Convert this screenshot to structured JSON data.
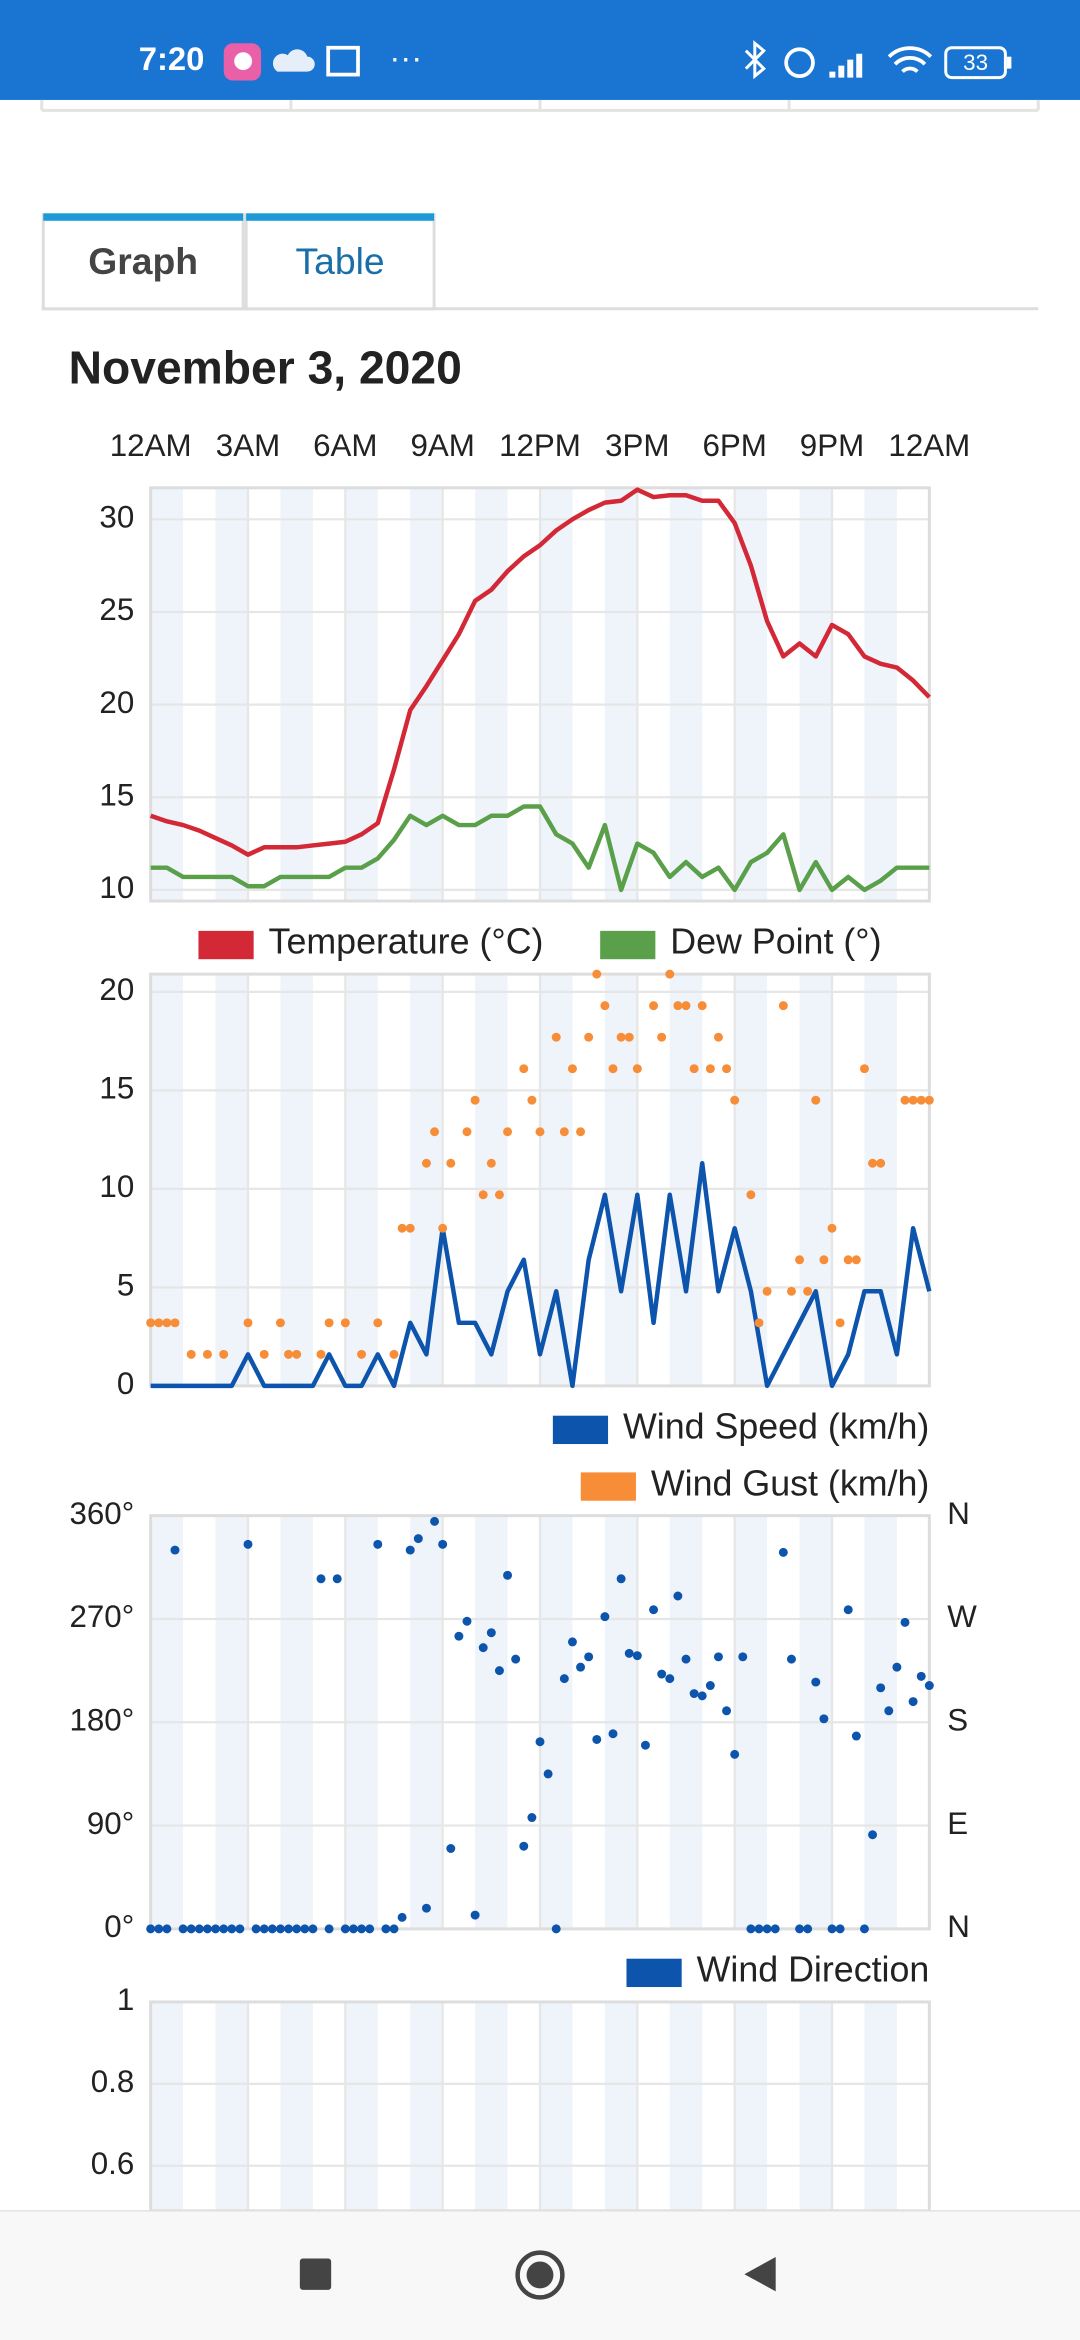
{
  "status_bar": {
    "time": "7:20",
    "battery": "33"
  },
  "tabs": [
    {
      "label": "Graph"
    },
    {
      "label": "Table"
    }
  ],
  "heading": "November 3, 2020",
  "chart_data": [
    {
      "type": "line",
      "xlim": [
        0,
        24
      ],
      "xticks": [
        {
          "value": 0,
          "label": "12AM"
        },
        {
          "value": 3,
          "label": "3AM"
        },
        {
          "value": 6,
          "label": "6AM"
        },
        {
          "value": 9,
          "label": "9AM"
        },
        {
          "value": 12,
          "label": "12PM"
        },
        {
          "value": 15,
          "label": "3PM"
        },
        {
          "value": 18,
          "label": "6PM"
        },
        {
          "value": 21,
          "label": "9PM"
        },
        {
          "value": 24,
          "label": "12AM"
        }
      ],
      "ylim": [
        9.4,
        31.7
      ],
      "yticks": [
        10,
        15,
        20,
        25,
        30
      ],
      "grid": true,
      "legend": "bottom",
      "x": [
        0,
        0.5,
        1,
        1.5,
        2,
        2.5,
        3,
        3.5,
        4,
        4.5,
        5,
        5.5,
        6,
        6.5,
        7,
        7.5,
        8,
        8.5,
        9,
        9.5,
        10,
        10.5,
        11,
        11.5,
        12,
        12.5,
        13,
        13.5,
        14,
        14.5,
        15,
        15.5,
        16,
        16.5,
        17,
        17.5,
        18,
        18.5,
        19,
        19.5,
        20,
        20.5,
        21,
        21.5,
        22,
        22.5,
        23,
        23.5,
        24
      ],
      "series": [
        {
          "name": "Temperature (°C)",
          "color": "#d32836",
          "values": [
            14.0,
            13.7,
            13.5,
            13.2,
            12.8,
            12.4,
            11.9,
            12.3,
            12.3,
            12.3,
            12.4,
            12.5,
            12.6,
            13.0,
            13.6,
            16.5,
            19.7,
            21.0,
            22.4,
            23.8,
            25.6,
            26.2,
            27.2,
            28.0,
            28.6,
            29.4,
            30.0,
            30.5,
            30.9,
            31.0,
            31.6,
            31.2,
            31.3,
            31.3,
            31.0,
            31.0,
            29.8,
            27.5,
            24.5,
            22.6,
            23.3,
            22.6,
            24.3,
            23.8,
            22.6,
            22.2,
            22.0,
            21.3,
            20.4
          ]
        },
        {
          "name": "Dew Point (°)",
          "color": "#5aa04a",
          "values": [
            11.2,
            11.2,
            10.7,
            10.7,
            10.7,
            10.7,
            10.2,
            10.2,
            10.7,
            10.7,
            10.7,
            10.7,
            11.2,
            11.2,
            11.7,
            12.7,
            14.0,
            13.5,
            14.0,
            13.5,
            13.5,
            14.0,
            14.0,
            14.5,
            14.5,
            13.0,
            12.5,
            11.2,
            13.5,
            10.0,
            12.5,
            12.0,
            10.7,
            11.5,
            10.7,
            11.2,
            10.0,
            11.5,
            12.0,
            13.0,
            10.0,
            11.5,
            10.0,
            10.7,
            10.0,
            10.5,
            11.2,
            11.2,
            11.2
          ]
        }
      ]
    },
    {
      "type": "line",
      "xlim": [
        0,
        24
      ],
      "ylim": [
        0,
        20.9
      ],
      "yticks": [
        0,
        5,
        10,
        15,
        20
      ],
      "grid": true,
      "legend": "bottom-right",
      "x": [
        0,
        0.5,
        1,
        1.5,
        2,
        2.5,
        3,
        3.5,
        4,
        4.5,
        5,
        5.5,
        6,
        6.5,
        7,
        7.5,
        8,
        8.5,
        9,
        9.5,
        10,
        10.5,
        11,
        11.5,
        12,
        12.5,
        13,
        13.5,
        14,
        14.5,
        15,
        15.5,
        16,
        16.5,
        17,
        17.5,
        18,
        18.5,
        19,
        19.5,
        20,
        20.5,
        21,
        21.5,
        22,
        22.5,
        23,
        23.5,
        24
      ],
      "series": [
        {
          "name": "Wind Speed (km/h)",
          "color": "#0d54ad",
          "type": "line",
          "values": [
            0,
            0,
            0,
            0,
            0,
            0,
            1.6,
            0,
            0,
            0,
            0,
            1.6,
            0,
            0,
            1.6,
            0,
            3.2,
            1.6,
            8.0,
            3.2,
            3.2,
            1.6,
            4.8,
            6.4,
            1.6,
            4.8,
            0,
            6.4,
            9.7,
            4.8,
            9.7,
            3.2,
            9.7,
            4.8,
            11.3,
            4.8,
            8.0,
            4.8,
            0,
            1.6,
            3.2,
            4.8,
            0,
            1.6,
            4.8,
            4.8,
            1.6,
            8.0,
            4.8
          ]
        },
        {
          "name": "Wind Gust (km/h)",
          "color": "#f78d37",
          "type": "scatter",
          "x": [
            0,
            0.25,
            0.5,
            0.75,
            1.25,
            1.75,
            2.25,
            3,
            3.5,
            4,
            4.25,
            4.5,
            5.25,
            5.5,
            6,
            6.5,
            7,
            7.5,
            7.75,
            8,
            8.5,
            8.75,
            9,
            9.25,
            9.75,
            10,
            10.25,
            10.5,
            10.75,
            11,
            11.5,
            11.75,
            12,
            12.5,
            12.75,
            13,
            13.25,
            13.5,
            13.75,
            14,
            14.25,
            14.5,
            14.75,
            15,
            15.5,
            15.75,
            16,
            16.25,
            16.5,
            16.75,
            17,
            17.25,
            17.5,
            17.75,
            18,
            18.5,
            18.75,
            19,
            19.5,
            19.75,
            20,
            20.25,
            20.5,
            20.75,
            21,
            21.25,
            21.5,
            21.75,
            22,
            22.25,
            22.5,
            23.25,
            23.5,
            23.75,
            24
          ],
          "values": [
            3.2,
            3.2,
            3.2,
            3.2,
            1.6,
            1.6,
            1.6,
            3.2,
            1.6,
            3.2,
            1.6,
            1.6,
            1.6,
            3.2,
            3.2,
            1.6,
            3.2,
            1.6,
            8.0,
            8.0,
            11.3,
            12.9,
            8.0,
            11.3,
            12.9,
            14.5,
            9.7,
            11.3,
            9.7,
            12.9,
            16.1,
            14.5,
            12.9,
            17.7,
            12.9,
            16.1,
            12.9,
            17.7,
            20.9,
            19.3,
            16.1,
            17.7,
            17.7,
            16.1,
            19.3,
            17.7,
            20.9,
            19.3,
            19.3,
            16.1,
            19.3,
            16.1,
            17.7,
            16.1,
            14.5,
            9.7,
            3.2,
            4.8,
            19.3,
            4.8,
            6.4,
            4.8,
            14.5,
            6.4,
            8.0,
            3.2,
            6.4,
            6.4,
            16.1,
            11.3,
            11.3,
            14.5,
            14.5,
            14.5,
            14.5
          ]
        }
      ]
    },
    {
      "type": "scatter",
      "xlim": [
        0,
        24
      ],
      "ylim": [
        0,
        360
      ],
      "yticks": [
        {
          "value": 0,
          "label": "0°"
        },
        {
          "value": 90,
          "label": "90°"
        },
        {
          "value": 180,
          "label": "180°"
        },
        {
          "value": 270,
          "label": "270°"
        },
        {
          "value": 360,
          "label": "360°"
        }
      ],
      "y2lim": [
        0,
        360
      ],
      "y2ticks": [
        {
          "value": 0,
          "label": "N"
        },
        {
          "value": 90,
          "label": "E"
        },
        {
          "value": 180,
          "label": "S"
        },
        {
          "value": 270,
          "label": "W"
        },
        {
          "value": 360,
          "label": "N"
        }
      ],
      "grid": true,
      "legend": "bottom-right",
      "x": [
        0,
        0.25,
        0.5,
        0.75,
        1,
        1.25,
        1.5,
        1.75,
        2,
        2.25,
        2.5,
        2.75,
        3,
        3.25,
        3.5,
        3.75,
        4,
        4.25,
        4.5,
        4.75,
        5,
        5.25,
        5.5,
        5.75,
        6,
        6.25,
        6.5,
        6.75,
        7,
        7.25,
        7.5,
        7.75,
        8,
        8.25,
        8.5,
        8.75,
        9,
        9.25,
        9.5,
        9.75,
        10,
        10.25,
        10.5,
        10.75,
        11,
        11.25,
        11.5,
        11.75,
        12,
        12.25,
        12.5,
        12.75,
        13,
        13.25,
        13.5,
        13.75,
        14,
        14.25,
        14.5,
        14.75,
        15,
        15.25,
        15.5,
        15.75,
        16,
        16.25,
        16.5,
        16.75,
        17,
        17.25,
        17.5,
        17.75,
        18,
        18.25,
        18.5,
        18.75,
        19,
        19.25,
        19.5,
        19.75,
        20,
        20.25,
        20.5,
        20.75,
        21,
        21.25,
        21.5,
        21.75,
        22,
        22.25,
        22.5,
        22.75,
        23,
        23.25,
        23.5,
        23.75,
        24
      ],
      "series": [
        {
          "name": "Wind Direction",
          "color": "#0d54ad",
          "values": [
            0,
            0,
            0,
            330,
            0,
            0,
            0,
            0,
            0,
            0,
            0,
            0,
            335,
            0,
            0,
            0,
            0,
            0,
            0,
            0,
            0,
            305,
            0,
            305,
            0,
            0,
            0,
            0,
            335,
            0,
            0,
            10,
            330,
            340,
            18,
            355,
            335,
            70,
            255,
            268,
            12,
            245,
            258,
            225,
            308,
            235,
            72,
            97,
            163,
            135,
            0,
            218,
            250,
            228,
            237,
            165,
            272,
            170,
            305,
            240,
            238,
            160,
            278,
            222,
            218,
            290,
            235,
            205,
            203,
            212,
            237,
            190,
            152,
            237,
            0,
            0,
            0,
            0,
            328,
            235,
            0,
            0,
            215,
            183,
            0,
            0,
            278,
            168,
            0,
            82,
            210,
            190,
            228,
            267,
            198,
            220,
            212
          ]
        }
      ]
    },
    {
      "type": "line",
      "xlim": [
        0,
        24
      ],
      "ylim": [
        0.49,
        1
      ],
      "yticks": [
        0.6,
        0.8,
        1
      ],
      "grid": true
    }
  ]
}
